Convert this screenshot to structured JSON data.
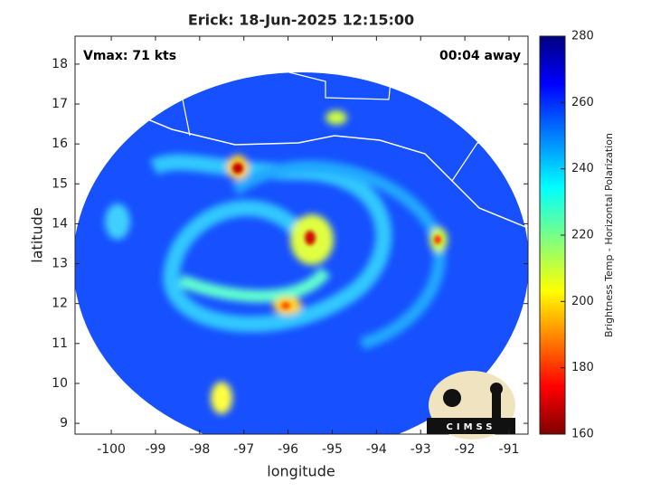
{
  "chart_data": {
    "type": "map",
    "title": "Erick: 18-Jun-2025 12:15:00",
    "annotations": [
      "Vmax: 71 kts",
      "00:04 away"
    ],
    "x_label": "longitude",
    "y_label": "latitude",
    "xlim": [
      -100.82,
      -90.57
    ],
    "ylim": [
      8.73,
      18.7
    ],
    "xticks": [
      -100,
      -99,
      -98,
      -97,
      -96,
      -95,
      -94,
      -93,
      -92,
      -91
    ],
    "yticks": [
      9,
      10,
      11,
      12,
      13,
      14,
      15,
      16,
      17,
      18
    ],
    "colorbar": {
      "label": "Brightness Temp - Horizontal Polarization",
      "lim": [
        160,
        280
      ],
      "ticks": [
        160,
        180,
        200,
        220,
        240,
        260,
        280
      ]
    },
    "logo": "CIMSS"
  }
}
